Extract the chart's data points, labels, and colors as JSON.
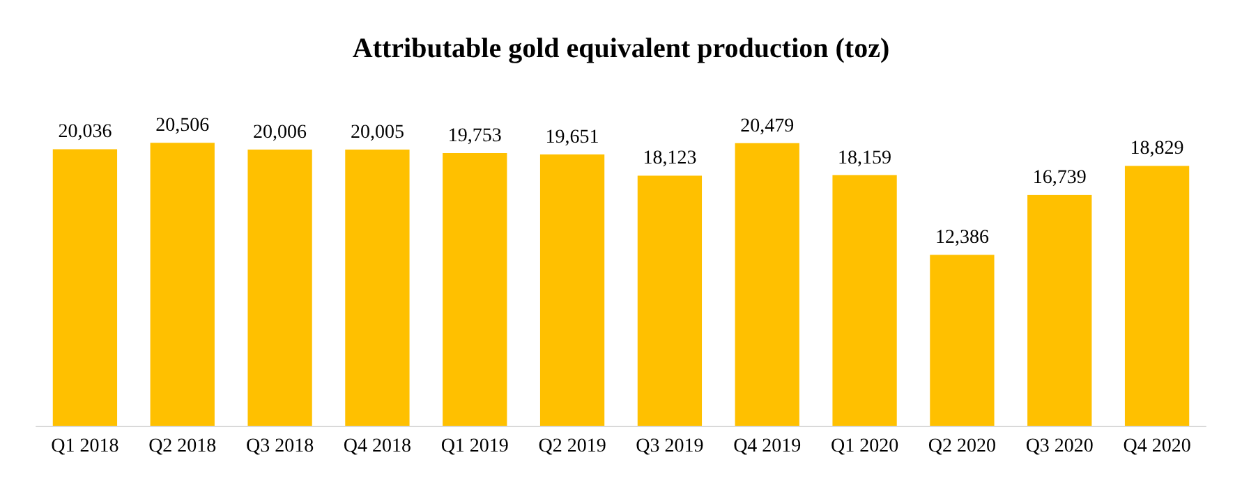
{
  "chart_data": {
    "type": "bar",
    "title": "Attributable gold equivalent production (toz)",
    "categories": [
      "Q1 2018",
      "Q2 2018",
      "Q3 2018",
      "Q4 2018",
      "Q1 2019",
      "Q2 2019",
      "Q3 2019",
      "Q4 2019",
      "Q1 2020",
      "Q2 2020",
      "Q3 2020",
      "Q4 2020"
    ],
    "values": [
      20036,
      20506,
      20006,
      20005,
      19753,
      19651,
      18123,
      20479,
      18159,
      12386,
      16739,
      18829
    ],
    "value_labels": [
      "20,036",
      "20,506",
      "20,006",
      "20,005",
      "19,753",
      "19,651",
      "18,123",
      "20,479",
      "18,159",
      "12,386",
      "16,739",
      "18,829"
    ],
    "color": "#ffc000"
  }
}
